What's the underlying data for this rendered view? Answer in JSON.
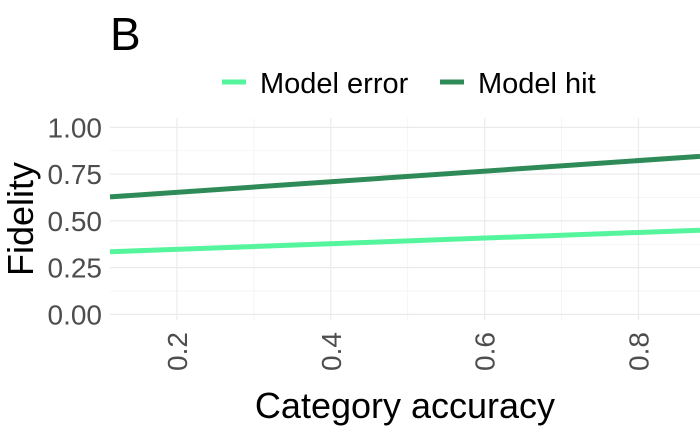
{
  "chart_data": {
    "type": "line",
    "panel_label": "B",
    "xlabel": "Category accuracy",
    "ylabel": "Fidelity",
    "xlim": [
      0.113,
      0.88
    ],
    "ylim": [
      -0.03,
      1.05
    ],
    "x_ticks": [
      0.2,
      0.4,
      0.6,
      0.8
    ],
    "x_tick_labels": [
      "0.2",
      "0.4",
      "0.6",
      "0.8"
    ],
    "y_ticks": [
      0.0,
      0.25,
      0.5,
      0.75,
      1.0
    ],
    "y_tick_labels": [
      "0.00",
      "0.25",
      "0.50",
      "0.75",
      "1.00"
    ],
    "grid": true,
    "legend_position": "top",
    "series": [
      {
        "name": "Model error",
        "color": "#54f59c",
        "x": [
          0.113,
          0.88
        ],
        "y": [
          0.335,
          0.45
        ]
      },
      {
        "name": "Model hit",
        "color": "#2e8b57",
        "x": [
          0.113,
          0.88
        ],
        "y": [
          0.628,
          0.845
        ]
      }
    ]
  }
}
